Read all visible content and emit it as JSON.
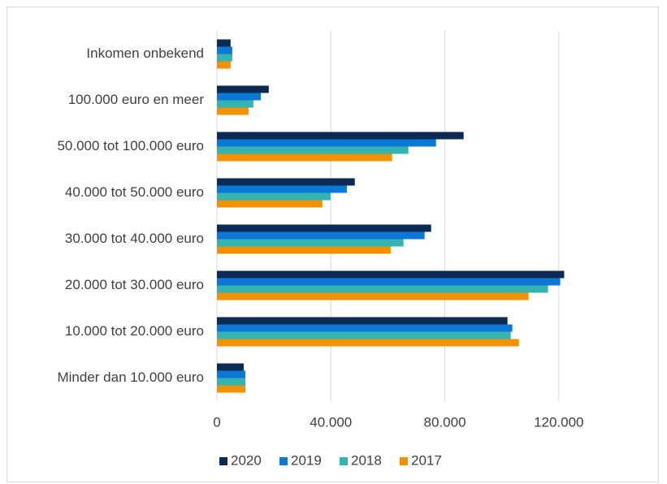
{
  "chart_data": {
    "type": "bar",
    "orientation": "horizontal",
    "categories": [
      "Inkomen onbekend",
      "100.000 euro en meer",
      "50.000 tot 100.000 euro",
      "40.000 tot 50.000 euro",
      "30.000 tot 40.000 euro",
      "20.000 tot 30.000 euro",
      "10.000 tot 20.000 euro",
      "Minder dan 10.000 euro"
    ],
    "series": [
      {
        "name": "2020",
        "color": "#0b2a54",
        "values": [
          4800,
          18200,
          86600,
          48400,
          75200,
          121900,
          102000,
          9400
        ]
      },
      {
        "name": "2019",
        "color": "#0a78d4",
        "values": [
          5400,
          15400,
          76900,
          45600,
          72900,
          120500,
          103700,
          10000
        ]
      },
      {
        "name": "2018",
        "color": "#35b3b0",
        "values": [
          5400,
          12800,
          67200,
          39900,
          65500,
          116200,
          103100,
          10000
        ]
      },
      {
        "name": "2017",
        "color": "#f39200",
        "values": [
          4800,
          11100,
          61500,
          37000,
          61000,
          109400,
          106000,
          10000
        ]
      }
    ],
    "xlim": [
      0,
      150000
    ],
    "xticks": [
      0,
      {
        "value": 40000,
        "label": "40.000"
      },
      {
        "value": 80000,
        "label": "80.000"
      },
      {
        "value": 120000,
        "label": "120.000"
      }
    ],
    "grid": true,
    "legend": "bottom"
  }
}
